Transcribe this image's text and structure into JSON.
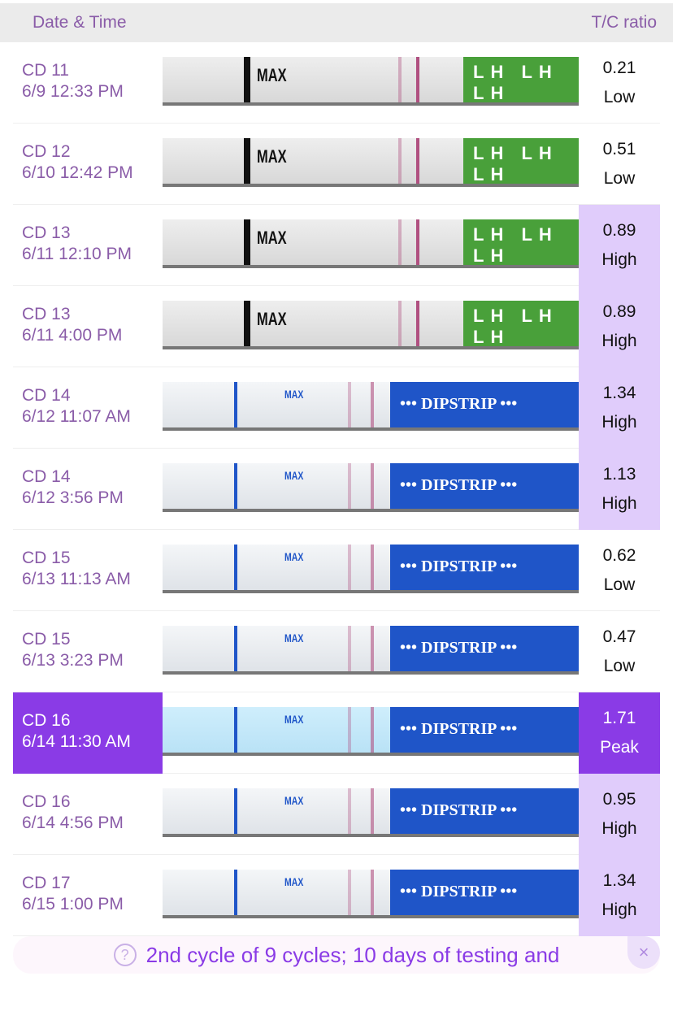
{
  "header": {
    "date_label": "Date & Time",
    "ratio_label": "T/C ratio"
  },
  "strip_text": {
    "max": "MAX",
    "lh": "LH LH LH",
    "dipstrip": "••• DIPSTRIP •••"
  },
  "rows": [
    {
      "cd": "CD 11",
      "time": "6/9 12:33 PM",
      "ratio": "0.21",
      "level": "Low",
      "brand": "lh"
    },
    {
      "cd": "CD 12",
      "time": "6/10 12:42 PM",
      "ratio": "0.51",
      "level": "Low",
      "brand": "lh"
    },
    {
      "cd": "CD 13",
      "time": "6/11 12:10 PM",
      "ratio": "0.89",
      "level": "High",
      "brand": "lh"
    },
    {
      "cd": "CD 13",
      "time": "6/11 4:00 PM",
      "ratio": "0.89",
      "level": "High",
      "brand": "lh"
    },
    {
      "cd": "CD 14",
      "time": "6/12 11:07 AM",
      "ratio": "1.34",
      "level": "High",
      "brand": "blue"
    },
    {
      "cd": "CD 14",
      "time": "6/12 3:56 PM",
      "ratio": "1.13",
      "level": "High",
      "brand": "blue"
    },
    {
      "cd": "CD 15",
      "time": "6/13 11:13 AM",
      "ratio": "0.62",
      "level": "Low",
      "brand": "blue"
    },
    {
      "cd": "CD 15",
      "time": "6/13 3:23 PM",
      "ratio": "0.47",
      "level": "Low",
      "brand": "blue"
    },
    {
      "cd": "CD 16",
      "time": "6/14 11:30 AM",
      "ratio": "1.71",
      "level": "Peak",
      "brand": "blue"
    },
    {
      "cd": "CD 16",
      "time": "6/14 4:56 PM",
      "ratio": "0.95",
      "level": "High",
      "brand": "blue"
    },
    {
      "cd": "CD 17",
      "time": "6/15 1:00 PM",
      "ratio": "1.34",
      "level": "High",
      "brand": "blue"
    }
  ],
  "banner": {
    "text": "2nd cycle of 9 cycles; 10 days of testing and",
    "help_icon": "?",
    "close_icon": "×"
  }
}
